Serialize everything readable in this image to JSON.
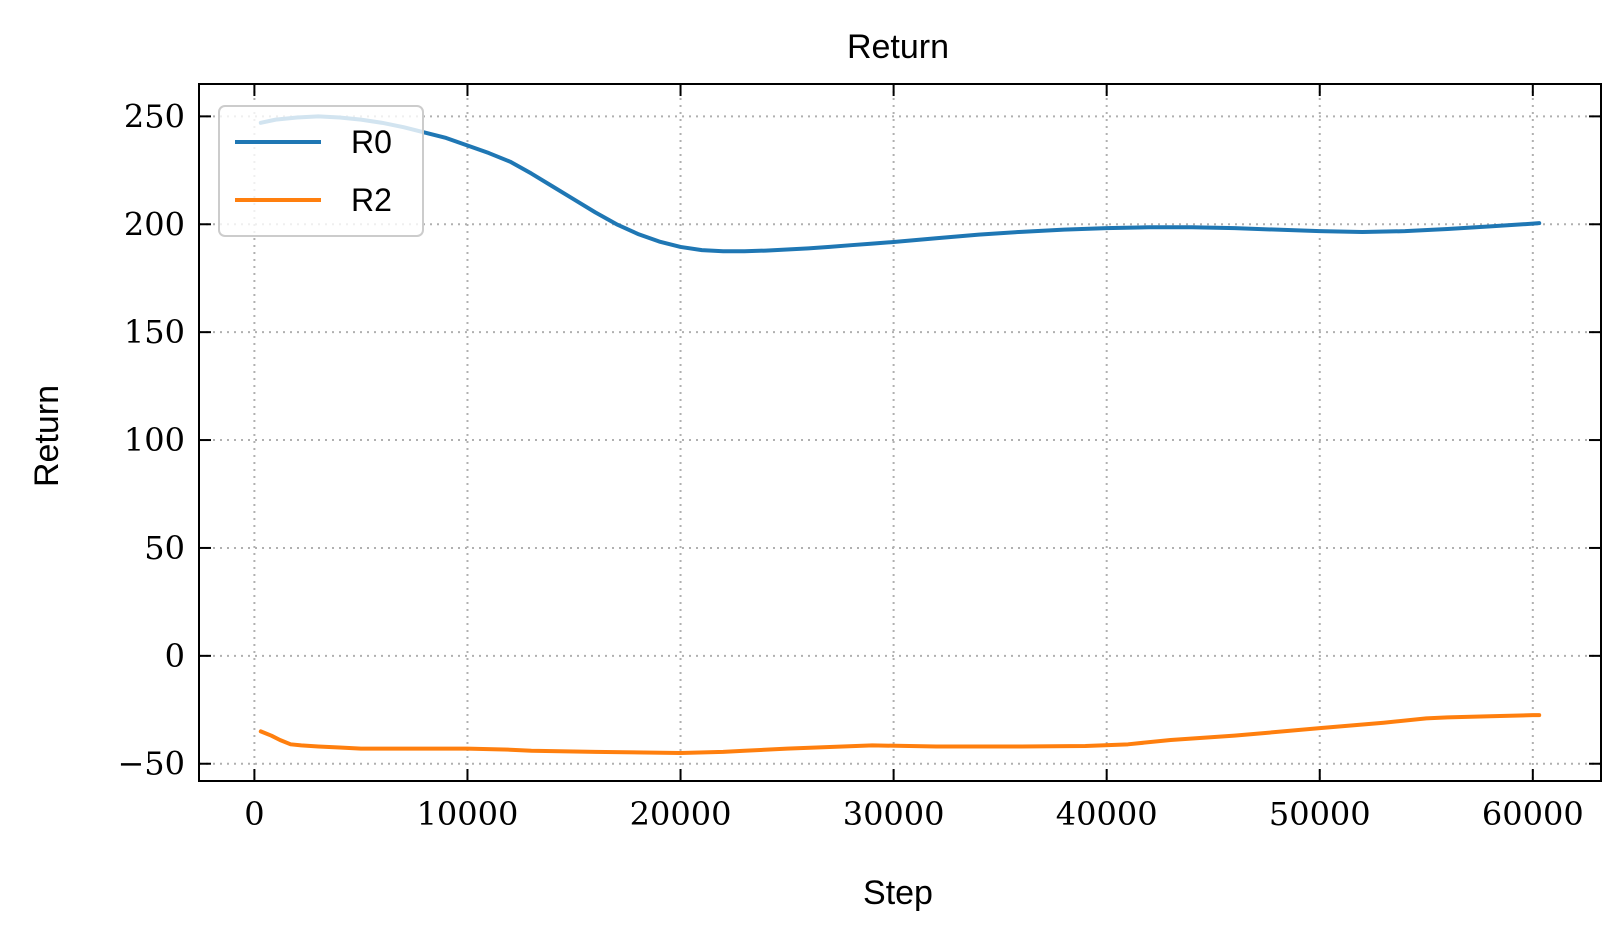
{
  "chart_data": {
    "type": "line",
    "title": "Return",
    "xlabel": "Step",
    "ylabel": "Return",
    "xlim": [
      -2600,
      63200
    ],
    "ylim": [
      -58,
      265
    ],
    "xticks": [
      0,
      10000,
      20000,
      30000,
      40000,
      50000,
      60000
    ],
    "xtick_labels": [
      "0",
      "10000",
      "20000",
      "30000",
      "40000",
      "50000",
      "60000"
    ],
    "yticks": [
      -50,
      0,
      50,
      100,
      150,
      200,
      250
    ],
    "ytick_labels": [
      "−50",
      "0",
      "50",
      "100",
      "150",
      "200",
      "250"
    ],
    "grid": true,
    "legend_position": "top-left",
    "series": [
      {
        "name": "R0",
        "color": "#1f77b4",
        "x": [
          300,
          1000,
          2000,
          3000,
          4000,
          5000,
          6000,
          7000,
          8000,
          9000,
          10000,
          11000,
          12000,
          13000,
          14000,
          15000,
          16000,
          17000,
          18000,
          19000,
          20000,
          21000,
          22000,
          23000,
          24000,
          25000,
          26000,
          27000,
          28000,
          29000,
          30000,
          32000,
          34000,
          36000,
          38000,
          40000,
          42000,
          44000,
          46000,
          48000,
          50000,
          52000,
          54000,
          56000,
          58000,
          60000,
          60300
        ],
        "y": [
          247,
          248.5,
          249.5,
          250,
          249.5,
          248.5,
          247,
          245,
          242.5,
          240,
          236.5,
          233,
          229,
          223.5,
          217.5,
          211.5,
          205.5,
          200,
          195.5,
          192,
          189.5,
          188,
          187.5,
          187.5,
          187.8,
          188.3,
          188.8,
          189.5,
          190.3,
          191,
          191.8,
          193.5,
          195.2,
          196.5,
          197.5,
          198.2,
          198.6,
          198.6,
          198.2,
          197.5,
          196.8,
          196.4,
          196.8,
          197.8,
          199,
          200.3,
          200.5
        ]
      },
      {
        "name": "R2",
        "color": "#ff7f0e",
        "x": [
          300,
          800,
          1200,
          1700,
          2200,
          3000,
          4000,
          5000,
          6000,
          8000,
          10000,
          12000,
          13000,
          16000,
          20000,
          22000,
          23000,
          25000,
          29000,
          32000,
          36000,
          39000,
          41000,
          43000,
          46000,
          50000,
          53000,
          55000,
          56000,
          58000,
          60000,
          60300
        ],
        "y": [
          -35,
          -37,
          -39,
          -41,
          -41.5,
          -42,
          -42.5,
          -43,
          -43,
          -43,
          -43,
          -43.5,
          -44,
          -44.5,
          -45,
          -44.5,
          -44,
          -43,
          -41.5,
          -42,
          -42,
          -41.8,
          -41,
          -39,
          -37,
          -33.5,
          -31,
          -29,
          -28.5,
          -28,
          -27.5,
          -27.5
        ]
      }
    ]
  }
}
